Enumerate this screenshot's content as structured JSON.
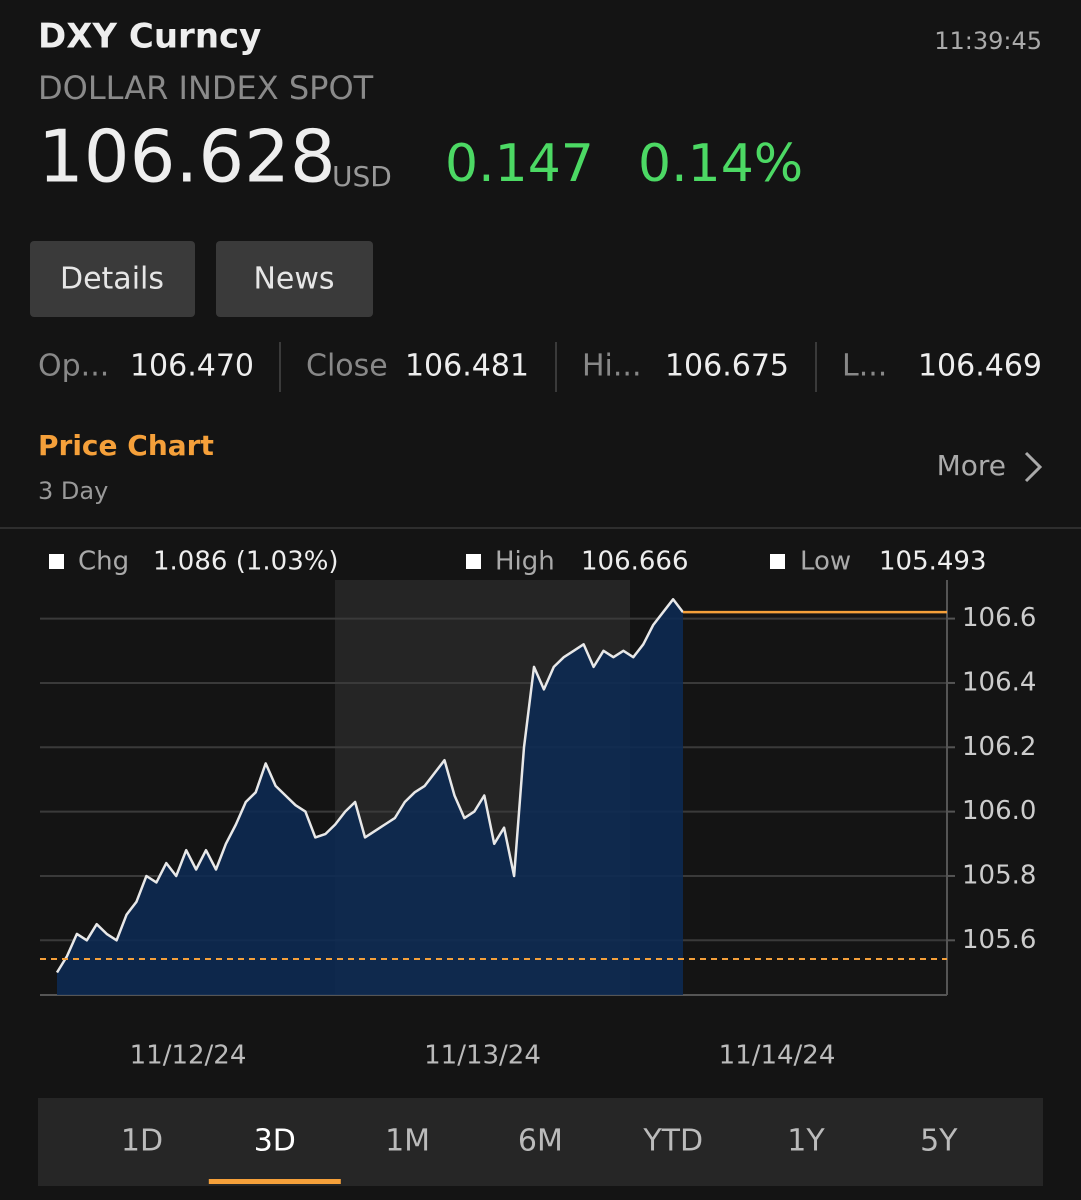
{
  "header": {
    "symbol": "DXY Curncy",
    "time": "11:39:45",
    "name": "DOLLAR INDEX SPOT",
    "price": "106.628",
    "currency": "USD",
    "change": "0.147",
    "change_pct": "0.14%"
  },
  "tabs": [
    "Details",
    "News"
  ],
  "stats": [
    {
      "label": "Op...",
      "value": "106.470"
    },
    {
      "label": "Close",
      "value": "106.481"
    },
    {
      "label": "Hi...",
      "value": "106.675"
    },
    {
      "label": "L...",
      "value": "106.469"
    }
  ],
  "section": {
    "title": "Price Chart",
    "subtitle": "3 Day",
    "more": "More"
  },
  "chart_data": {
    "type": "line",
    "legend": [
      {
        "label": "Chg",
        "value": "1.086 (1.03%)"
      },
      {
        "label": "High",
        "value": "106.666"
      },
      {
        "label": "Low",
        "value": "105.493"
      }
    ],
    "x_labels": [
      "11/12/24",
      "11/13/24",
      "11/14/24"
    ],
    "series": [
      {
        "color": "#e8e8e8",
        "fill": "#0c2a55",
        "values": [
          105.5,
          105.55,
          105.62,
          105.6,
          105.65,
          105.62,
          105.6,
          105.68,
          105.72,
          105.8,
          105.78,
          105.84,
          105.8,
          105.88,
          105.82,
          105.88,
          105.82,
          105.9,
          105.96,
          106.03,
          106.06,
          106.15,
          106.08,
          106.05,
          106.02,
          106.0,
          105.92,
          105.93,
          105.96,
          106.0,
          106.03,
          105.92,
          105.94,
          105.96,
          105.98,
          106.03,
          106.06,
          106.08,
          106.12,
          106.16,
          106.05,
          105.98,
          106.0,
          106.05,
          105.9,
          105.95,
          105.8,
          106.2,
          106.45,
          106.38,
          106.45,
          106.48,
          106.5,
          106.52,
          106.45,
          106.5,
          106.48,
          106.5,
          106.48,
          106.52,
          106.58,
          106.62,
          106.66,
          106.62
        ]
      }
    ],
    "previous_close": 105.542,
    "reference_color": "#f5a03a",
    "ylim": [
      105.43,
      106.72
    ],
    "yticks": [
      105.6,
      105.8,
      {
        "value": 106,
        "label": "106.0"
      },
      106.2,
      106.4,
      106.6
    ],
    "grid": true
  },
  "ranges": [
    "1D",
    "3D",
    "1M",
    "6M",
    "YTD",
    "1Y",
    "5Y"
  ],
  "selected_range": 1
}
